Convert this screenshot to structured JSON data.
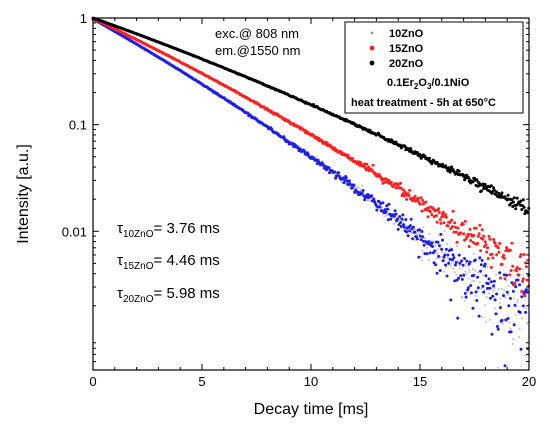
{
  "chart_data": {
    "type": "scatter",
    "title": "",
    "xlabel": "Decay time [ms]",
    "ylabel": "Intensity [a.u.]",
    "xlim": [
      0,
      20
    ],
    "ylim": [
      0.0005,
      1
    ],
    "yscale": "log",
    "x_ticks": [
      "0",
      "5",
      "10",
      "15",
      "20"
    ],
    "y_ticks": [
      "1",
      "0.1",
      "0.01"
    ],
    "grid": false,
    "legend_position": "top-right",
    "series": [
      {
        "name": "10ZnO",
        "color": "#b8b8d8",
        "lifetime_ms": 3.76
      },
      {
        "name": "15ZnO",
        "color": "#ff2020",
        "lifetime_ms": 4.46
      },
      {
        "name": "20ZnO",
        "color": "#000000",
        "lifetime_ms": 5.98
      }
    ],
    "excitation_text": "exc.@ 808 nm",
    "emission_text": "em.@1550 nm",
    "legend_composition": "0.1Er2O3/0.1NiO",
    "legend_heat_treatment": "heat treatment -  5h at 650°C",
    "taus": [
      {
        "sym": "τ",
        "sub": "10ZnO",
        "value": "= 3.76 ms"
      },
      {
        "sym": "τ",
        "sub": "15ZnO",
        "value": "= 4.46 ms"
      },
      {
        "sym": "τ",
        "sub": "20ZnO",
        "value": "= 5.98 ms"
      }
    ],
    "extra_blue_series_color": "#2020e0"
  }
}
